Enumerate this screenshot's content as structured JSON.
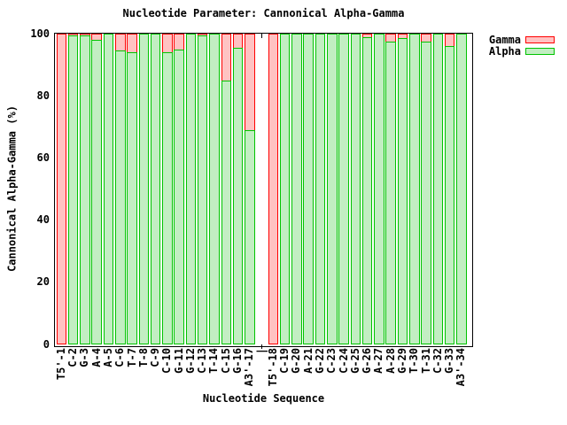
{
  "title": "Nucleotide Parameter: Cannonical Alpha-Gamma",
  "chart_data": {
    "type": "bar",
    "style": "overlayed-stacked-histogram",
    "title": "Nucleotide Parameter: Cannonical Alpha-Gamma",
    "xlabel": "Nucleotide Sequence",
    "ylabel": "Cannonical Alpha-Gamma (%)",
    "ylim": [
      0,
      100
    ],
    "yticks": [
      0,
      20,
      40,
      60,
      80,
      100
    ],
    "grid": false,
    "legend_position": "top-right-outside",
    "categories": [
      "T5'-1",
      "C-2",
      "G-3",
      "A-4",
      "A-5",
      "C-6",
      "T-7",
      "T-8",
      "C-9",
      "C-10",
      "G-11",
      "G-12",
      "C-13",
      "T-14",
      "C-15",
      "G-16",
      "A3'-17",
      "|",
      "T5'-18",
      "C-19",
      "G-20",
      "A-21",
      "G-22",
      "C-23",
      "C-24",
      "G-25",
      "G-26",
      "A-27",
      "A-28",
      "G-29",
      "T-30",
      "T-31",
      "C-32",
      "G-33",
      "A3'-34"
    ],
    "series": [
      {
        "name": "Gamma",
        "border_color": "#ff0000",
        "fill_color": "#ffc2c2",
        "values": [
          100,
          100,
          100,
          100,
          100,
          100,
          100,
          100,
          100,
          100,
          100,
          100,
          100,
          100,
          100,
          100,
          100,
          null,
          100,
          100,
          100,
          100,
          100,
          100,
          100,
          100,
          100,
          100,
          100,
          100,
          100,
          100,
          100,
          100,
          100
        ]
      },
      {
        "name": "Alpha",
        "border_color": "#00c400",
        "fill_color": "#c2eec2",
        "values": [
          0,
          99.5,
          99.5,
          98,
          100,
          94.5,
          94,
          100,
          100,
          94,
          95,
          100,
          99.5,
          100,
          85,
          95.5,
          69,
          null,
          0,
          100,
          100,
          100,
          100,
          100,
          100,
          100,
          99,
          100,
          97.5,
          98.5,
          100,
          97.5,
          100,
          96,
          100
        ]
      }
    ]
  }
}
